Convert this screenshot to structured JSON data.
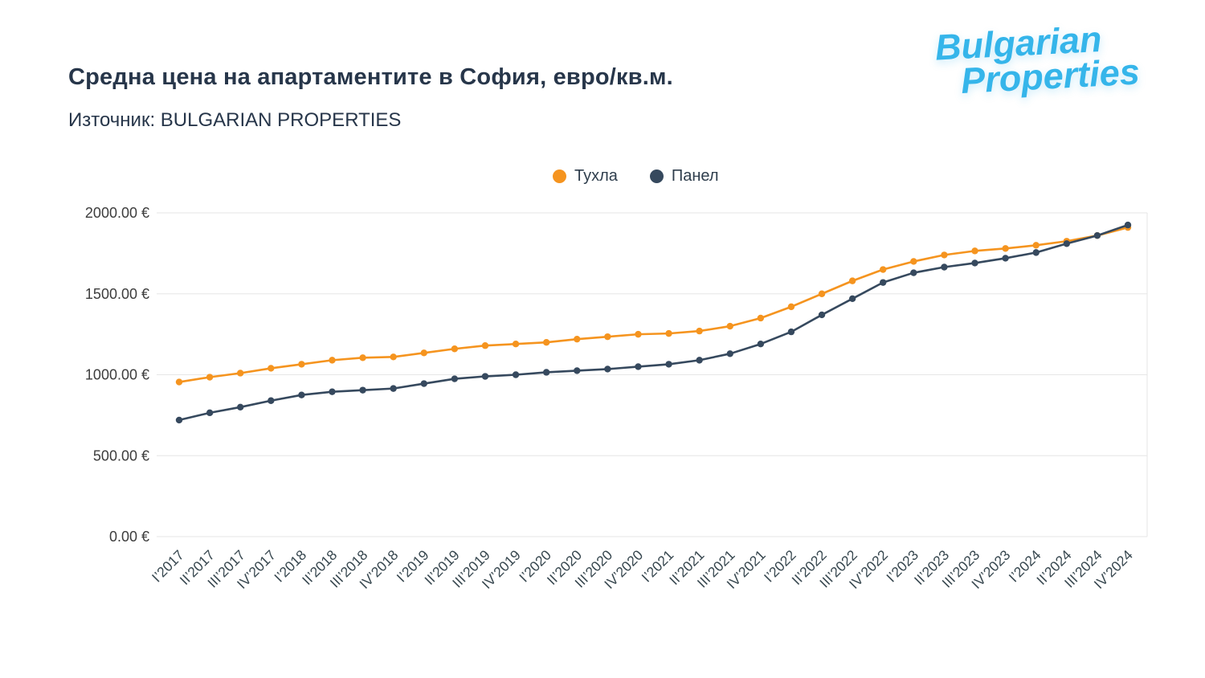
{
  "header": {
    "title": "Средна цена на апартаментите в София, евро/кв.м.",
    "subtitle": "Източник: BULGARIAN PROPERTIES",
    "logo_line1": "Bulgarian",
    "logo_line2": "Properties",
    "logo_color": "#35b5ea"
  },
  "legend": [
    {
      "label": "Тухла",
      "color": "#F5941F"
    },
    {
      "label": "Панел",
      "color": "#36495E"
    }
  ],
  "chart_data": {
    "type": "line",
    "title": "Средна цена на апартаментите в София, евро/кв.м.",
    "subtitle": "Източник: BULGARIAN PROPERTIES",
    "xlabel": "",
    "ylabel": "",
    "ylim": [
      0,
      2000
    ],
    "grid": true,
    "legend_position": "top-center",
    "yticks": [
      0,
      500,
      1000,
      1500,
      2000
    ],
    "ytick_labels": [
      "0.00 €",
      "500.00 €",
      "1000.00 €",
      "1500.00 €",
      "2000.00 €"
    ],
    "categories": [
      "I’2017",
      "II’2017",
      "III’2017",
      "IV’2017",
      "I’2018",
      "II’2018",
      "III’2018",
      "IV’2018",
      "I’2019",
      "II’2019",
      "III’2019",
      "IV’2019",
      "I’2020",
      "II’2020",
      "III’2020",
      "IV’2020",
      "I’2021",
      "II’2021",
      "III’2021",
      "IV’2021",
      "I’2022",
      "II’2022",
      "III’2022",
      "IV’2022",
      "I’2023",
      "II’2023",
      "III’2023",
      "IV’2023",
      "I’2024",
      "II’2024",
      "III’2024",
      "IV’2024"
    ],
    "series": [
      {
        "name": "Тухла",
        "color": "#F5941F",
        "values": [
          955,
          985,
          1010,
          1040,
          1065,
          1090,
          1105,
          1110,
          1135,
          1160,
          1180,
          1190,
          1200,
          1220,
          1235,
          1250,
          1255,
          1270,
          1300,
          1350,
          1420,
          1500,
          1580,
          1650,
          1700,
          1740,
          1765,
          1780,
          1800,
          1825,
          1860,
          1910
        ]
      },
      {
        "name": "Панел",
        "color": "#36495E",
        "values": [
          720,
          765,
          800,
          840,
          875,
          895,
          905,
          915,
          945,
          975,
          990,
          1000,
          1015,
          1025,
          1035,
          1050,
          1065,
          1090,
          1130,
          1190,
          1265,
          1370,
          1470,
          1570,
          1630,
          1665,
          1690,
          1720,
          1755,
          1810,
          1860,
          1925
        ]
      }
    ]
  }
}
